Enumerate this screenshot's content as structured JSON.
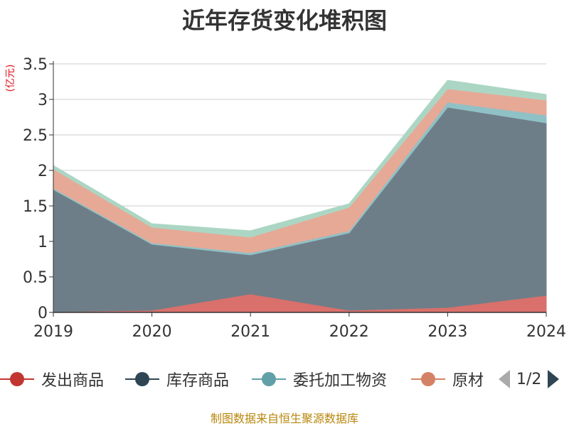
{
  "title": "近年存货变化堆积图",
  "unit": "(亿元)",
  "source": "制图数据来自恒生聚源数据库",
  "legend": {
    "items": [
      {
        "label": "发出商品",
        "color": "#c23531"
      },
      {
        "label": "库存商品",
        "color": "#2f4554"
      },
      {
        "label": "委托加工物资",
        "color": "#61a0a8"
      },
      {
        "label": "原材",
        "color": "#d48265"
      }
    ],
    "pager": "1/2",
    "prev_icon": "triangle-left-icon",
    "next_icon": "triangle-right-icon"
  },
  "chart_data": {
    "type": "area",
    "stacked": true,
    "categories": [
      "2019",
      "2020",
      "2021",
      "2022",
      "2023",
      "2024"
    ],
    "ylim": [
      0,
      3.5
    ],
    "yticks": [
      "0",
      "0.5",
      "1",
      "1.5",
      "2",
      "2.5",
      "3",
      "3.5"
    ],
    "grid": true,
    "series": [
      {
        "name": "发出商品",
        "color": "#d9706b",
        "values": [
          0.01,
          0.03,
          0.26,
          0.03,
          0.07,
          0.24
        ]
      },
      {
        "name": "库存商品",
        "color": "#6e7e88",
        "values": [
          1.72,
          0.93,
          0.55,
          1.09,
          2.82,
          2.43
        ]
      },
      {
        "name": "委托加工物资",
        "color": "#8fc1c6",
        "values": [
          0.02,
          0.02,
          0.03,
          0.03,
          0.07,
          0.11
        ]
      },
      {
        "name": "原材",
        "color": "#e6a996",
        "values": [
          0.27,
          0.22,
          0.22,
          0.33,
          0.19,
          0.21
        ]
      },
      {
        "name": "",
        "color": "#acd6c4",
        "values": [
          0.05,
          0.05,
          0.09,
          0.05,
          0.12,
          0.08
        ]
      }
    ]
  }
}
